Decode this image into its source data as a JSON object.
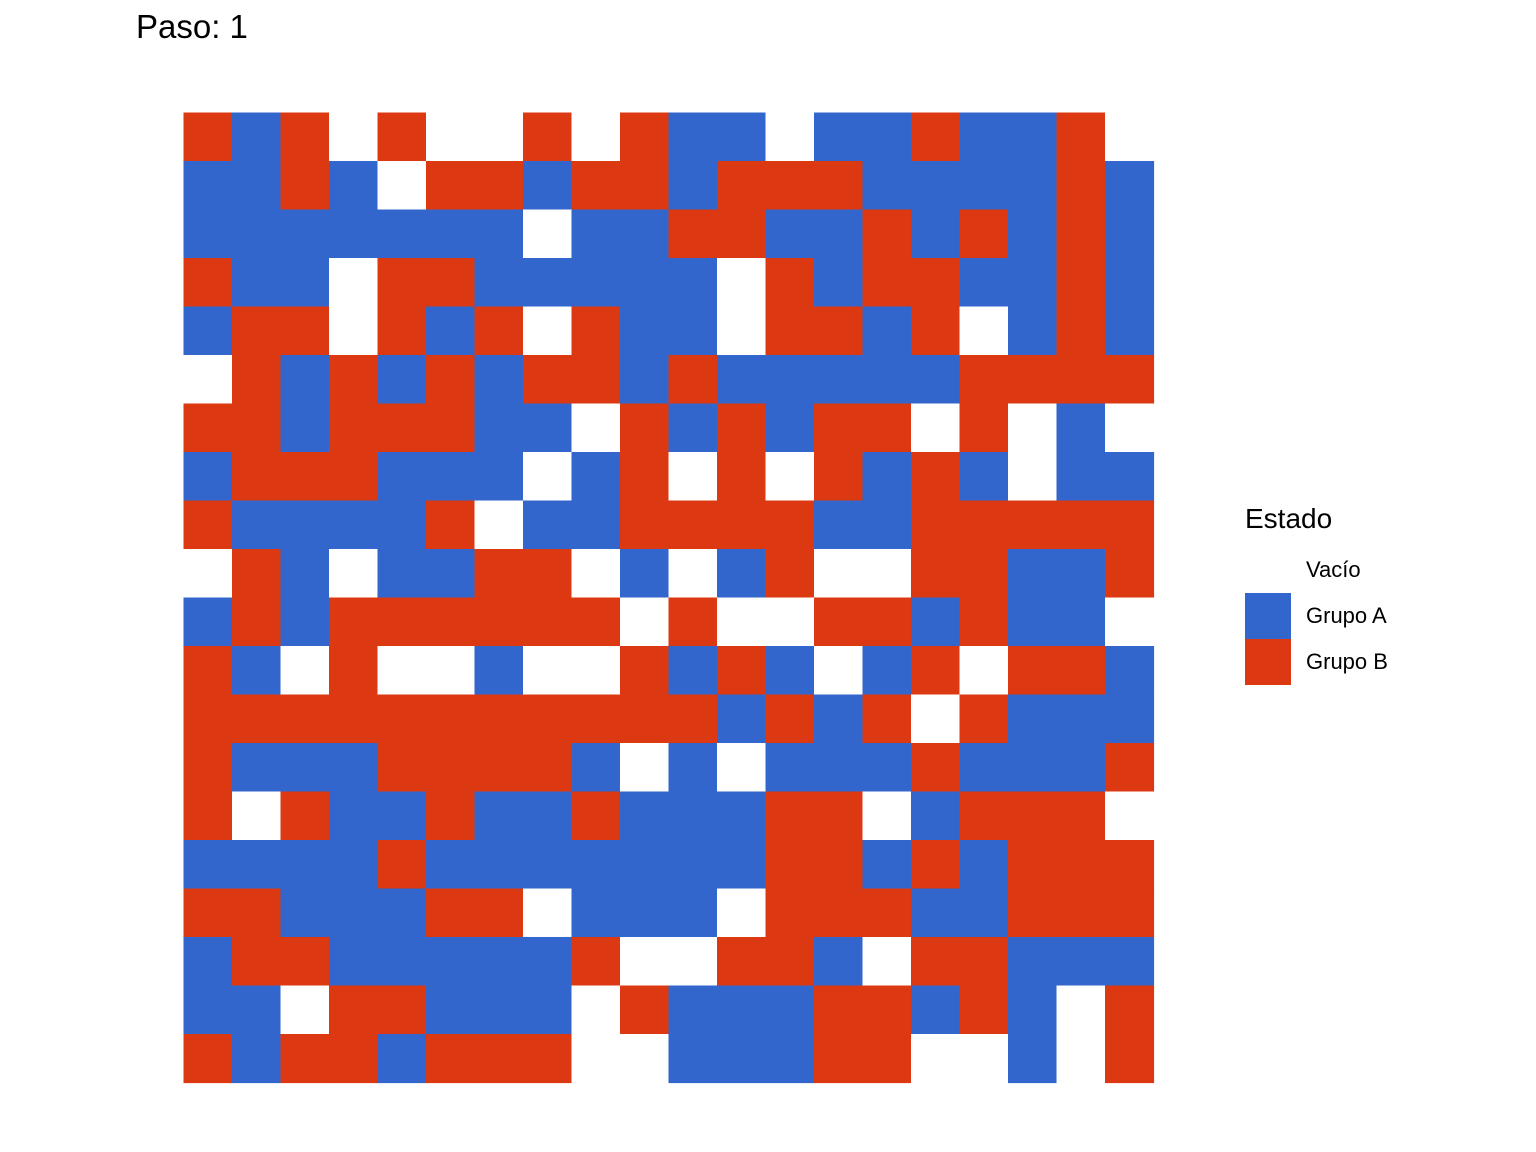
{
  "chart_data": {
    "type": "heatmap",
    "title": "Paso: 1",
    "xlabel": "",
    "ylabel": "",
    "grid": false,
    "legend_position": "right",
    "legend": {
      "title": "Estado",
      "items": [
        {
          "label": "Vacío",
          "state": 0,
          "color": "#FFFFFF"
        },
        {
          "label": "Grupo A",
          "state": 1,
          "color": "#3366CC"
        },
        {
          "label": "Grupo B",
          "state": 2,
          "color": "#DC3912"
        }
      ]
    },
    "rows": 20,
    "cols": 20,
    "cells": [
      [
        2,
        1,
        2,
        0,
        2,
        0,
        0,
        2,
        0,
        2,
        1,
        1,
        0,
        1,
        1,
        2,
        1,
        1,
        2,
        0
      ],
      [
        1,
        1,
        2,
        1,
        0,
        2,
        2,
        1,
        2,
        2,
        1,
        2,
        2,
        2,
        1,
        1,
        1,
        1,
        2,
        1
      ],
      [
        1,
        1,
        1,
        1,
        1,
        1,
        1,
        0,
        1,
        1,
        2,
        2,
        1,
        1,
        2,
        1,
        2,
        1,
        2,
        1
      ],
      [
        2,
        1,
        1,
        0,
        2,
        2,
        1,
        1,
        1,
        1,
        1,
        0,
        2,
        1,
        2,
        2,
        1,
        1,
        2,
        1
      ],
      [
        1,
        2,
        2,
        0,
        2,
        1,
        2,
        0,
        2,
        1,
        1,
        0,
        2,
        2,
        1,
        2,
        0,
        1,
        2,
        1
      ],
      [
        0,
        2,
        1,
        2,
        1,
        2,
        1,
        2,
        2,
        1,
        2,
        1,
        1,
        1,
        1,
        1,
        2,
        2,
        2,
        2
      ],
      [
        2,
        2,
        1,
        2,
        2,
        2,
        1,
        1,
        0,
        2,
        1,
        2,
        1,
        2,
        2,
        0,
        2,
        0,
        1,
        0
      ],
      [
        1,
        2,
        2,
        2,
        1,
        1,
        1,
        0,
        1,
        2,
        0,
        2,
        0,
        2,
        1,
        2,
        1,
        0,
        1,
        1
      ],
      [
        2,
        1,
        1,
        1,
        1,
        2,
        0,
        1,
        1,
        2,
        2,
        2,
        2,
        1,
        1,
        2,
        2,
        2,
        2,
        2
      ],
      [
        0,
        2,
        1,
        0,
        1,
        1,
        2,
        2,
        0,
        1,
        0,
        1,
        2,
        0,
        0,
        2,
        2,
        1,
        1,
        2
      ],
      [
        1,
        2,
        1,
        2,
        2,
        2,
        2,
        2,
        2,
        0,
        2,
        0,
        0,
        2,
        2,
        1,
        2,
        1,
        1,
        0
      ],
      [
        2,
        1,
        0,
        2,
        0,
        0,
        1,
        0,
        0,
        2,
        1,
        2,
        1,
        0,
        1,
        2,
        0,
        2,
        2,
        1
      ],
      [
        2,
        2,
        2,
        2,
        2,
        2,
        2,
        2,
        2,
        2,
        2,
        1,
        2,
        1,
        2,
        0,
        2,
        1,
        1,
        1
      ],
      [
        2,
        1,
        1,
        1,
        2,
        2,
        2,
        2,
        1,
        0,
        1,
        0,
        1,
        1,
        1,
        2,
        1,
        1,
        1,
        2
      ],
      [
        2,
        0,
        2,
        1,
        1,
        2,
        1,
        1,
        2,
        1,
        1,
        1,
        2,
        2,
        0,
        1,
        2,
        2,
        2,
        0
      ],
      [
        1,
        1,
        1,
        1,
        2,
        1,
        1,
        1,
        1,
        1,
        1,
        1,
        2,
        2,
        1,
        2,
        1,
        2,
        2,
        2
      ],
      [
        2,
        2,
        1,
        1,
        1,
        2,
        2,
        0,
        1,
        1,
        1,
        0,
        2,
        2,
        2,
        1,
        1,
        2,
        2,
        2
      ],
      [
        1,
        2,
        2,
        1,
        1,
        1,
        1,
        1,
        2,
        0,
        0,
        2,
        2,
        1,
        0,
        2,
        2,
        1,
        1,
        1
      ],
      [
        1,
        1,
        0,
        2,
        2,
        1,
        1,
        1,
        0,
        2,
        1,
        1,
        1,
        2,
        2,
        1,
        2,
        1,
        0,
        2
      ],
      [
        2,
        1,
        2,
        2,
        1,
        2,
        2,
        2,
        0,
        0,
        1,
        1,
        1,
        2,
        2,
        0,
        0,
        1,
        0,
        2
      ]
    ]
  }
}
